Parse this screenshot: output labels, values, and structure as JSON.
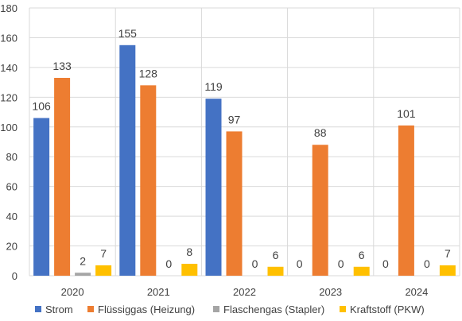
{
  "chart_data": {
    "type": "bar",
    "categories": [
      "2020",
      "2021",
      "2022",
      "2023",
      "2024"
    ],
    "series": [
      {
        "name": "Strom",
        "values": [
          106,
          155,
          119,
          0,
          0
        ],
        "color": "#4472C4"
      },
      {
        "name": "Flüssiggas (Heizung)",
        "values": [
          133,
          128,
          97,
          88,
          101
        ],
        "color": "#ED7D31"
      },
      {
        "name": "Flaschengas (Stapler)",
        "values": [
          2,
          0,
          0,
          0,
          0
        ],
        "color": "#A5A5A5"
      },
      {
        "name": "Kraftstoff (PKW)",
        "values": [
          7,
          8,
          6,
          6,
          7
        ],
        "color": "#FFC000"
      }
    ],
    "data_labels": [
      [
        "106",
        "133",
        "2",
        "7"
      ],
      [
        "155",
        "128",
        "0",
        "8"
      ],
      [
        "119",
        "97",
        "0",
        "6"
      ],
      [
        "0",
        "88",
        "0",
        "6"
      ],
      [
        "0",
        "101",
        "0",
        "7"
      ]
    ],
    "ylim": [
      0,
      180
    ],
    "yticks": [
      "0",
      "20",
      "40",
      "60",
      "80",
      "100",
      "120",
      "140",
      "160",
      "180"
    ],
    "grid": true,
    "legend_position": "bottom",
    "title": "",
    "xlabel": "",
    "ylabel": ""
  }
}
